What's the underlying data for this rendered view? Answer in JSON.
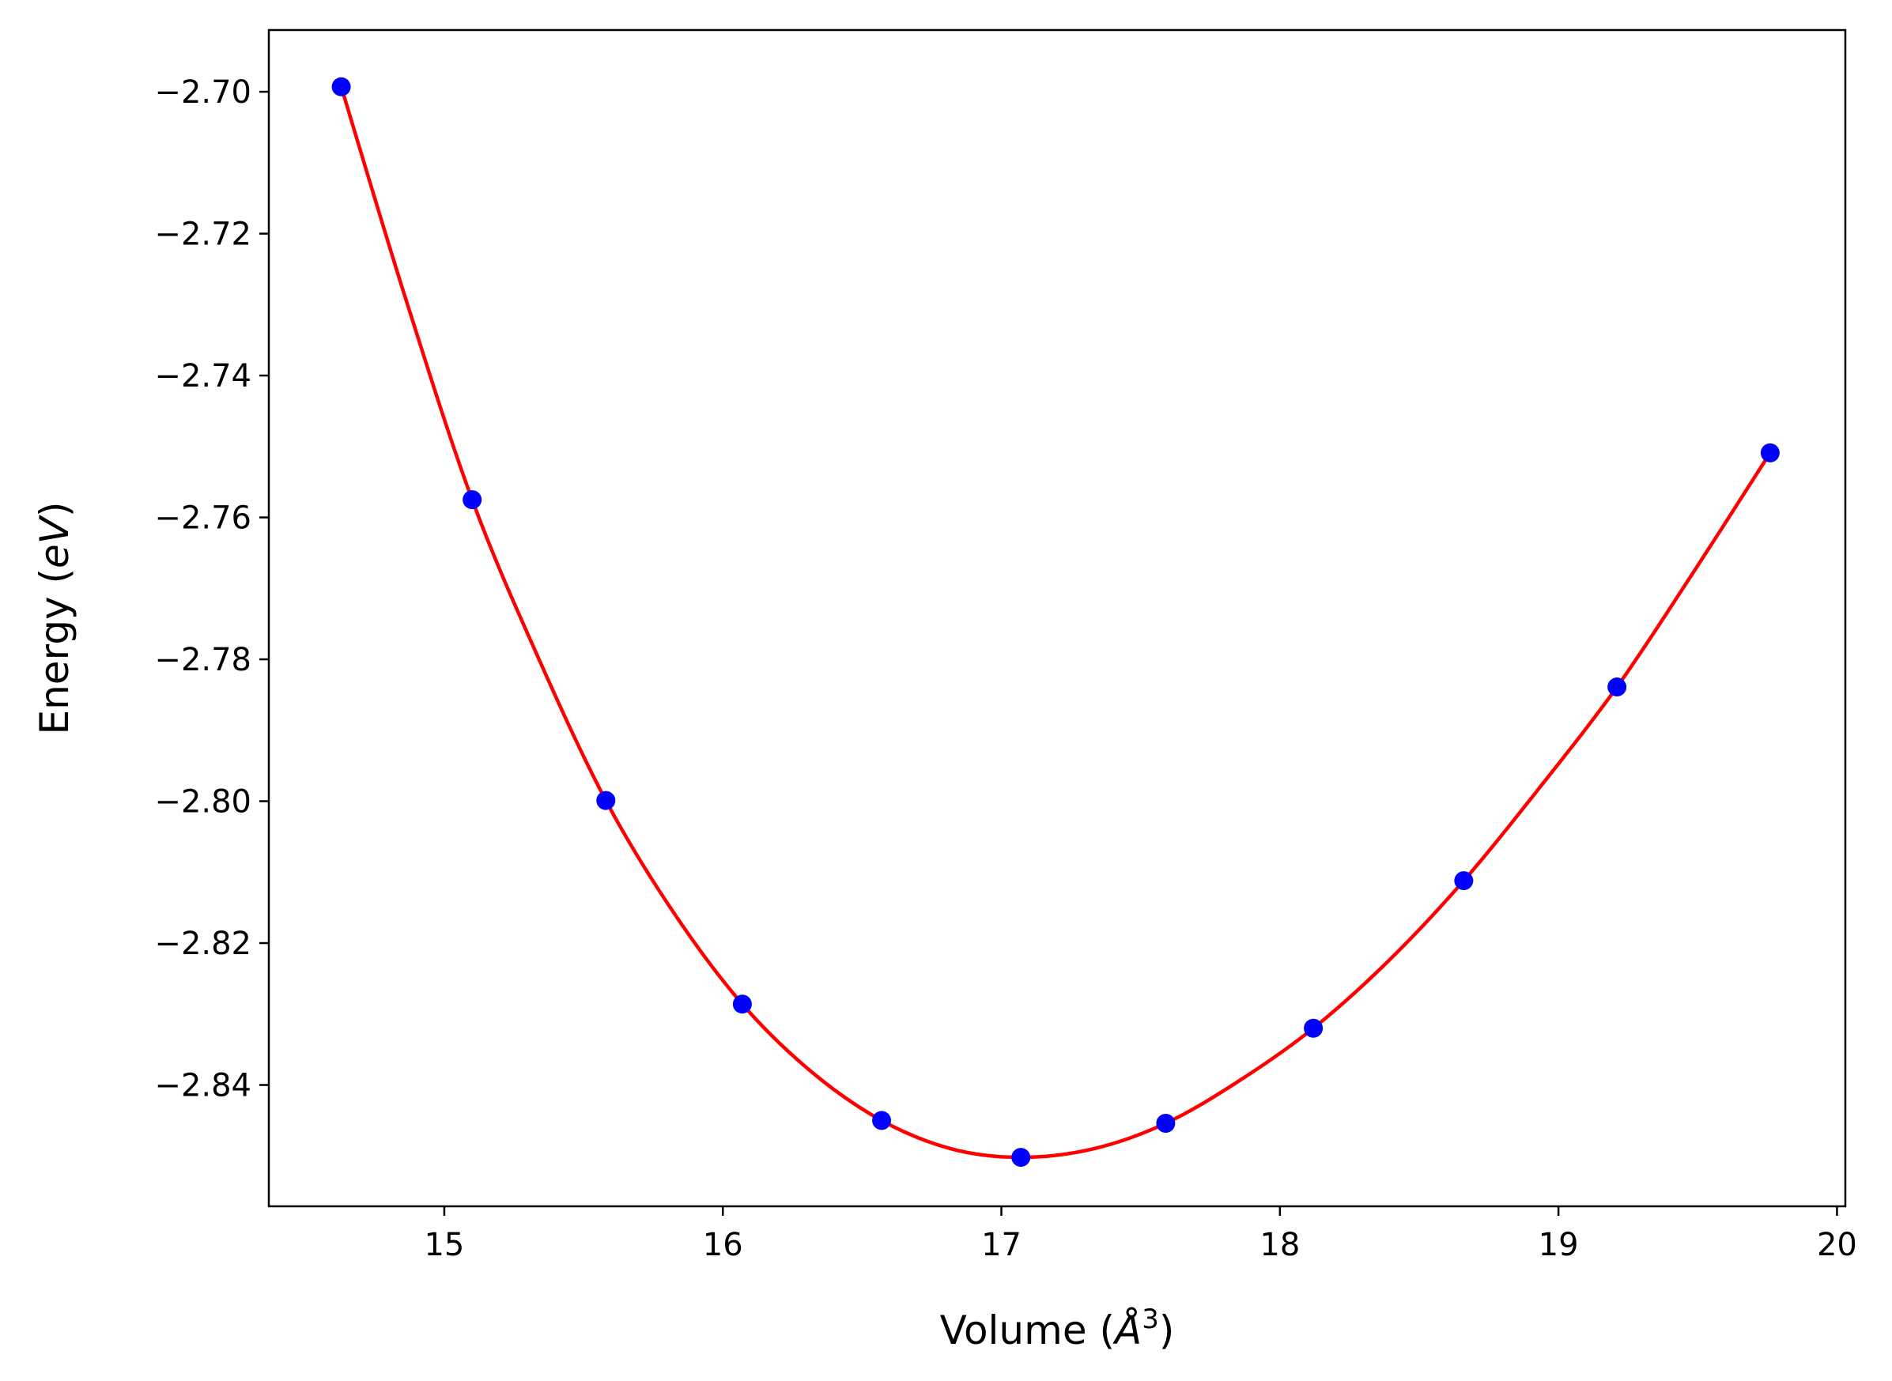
{
  "chart_data": {
    "type": "line",
    "title": "",
    "xlabel": {
      "prefix": "Volume (",
      "symbol": "Å",
      "superscript": "3",
      "suffix": ")"
    },
    "ylabel": {
      "prefix": "Energy (",
      "symbol": "eV",
      "suffix": ")"
    },
    "xlim": [
      14.37,
      20.03
    ],
    "ylim": [
      -2.8571,
      -2.6913
    ],
    "x_ticks": [
      15,
      16,
      17,
      18,
      19,
      20
    ],
    "x_tick_labels": [
      "15",
      "16",
      "17",
      "18",
      "19",
      "20"
    ],
    "y_ticks": [
      -2.7,
      -2.72,
      -2.74,
      -2.76,
      -2.78,
      -2.8,
      -2.82,
      -2.84
    ],
    "y_tick_labels": [
      "−2.70",
      "−2.72",
      "−2.74",
      "−2.76",
      "−2.78",
      "−2.80",
      "−2.82",
      "−2.84"
    ],
    "grid": false,
    "series": [
      {
        "kind": "scatter",
        "color": "#0000ff",
        "points": [
          [
            14.63,
            -2.6993
          ],
          [
            15.1,
            -2.7575
          ],
          [
            15.58,
            -2.7999
          ],
          [
            16.07,
            -2.8286
          ],
          [
            16.57,
            -2.845
          ],
          [
            17.07,
            -2.8502
          ],
          [
            17.59,
            -2.8454
          ],
          [
            18.12,
            -2.832
          ],
          [
            18.66,
            -2.8112
          ],
          [
            19.21,
            -2.7839
          ],
          [
            19.76,
            -2.7509
          ]
        ]
      },
      {
        "kind": "fit-curve",
        "color": "#ff0000",
        "points": [
          [
            14.63,
            -2.6993
          ],
          [
            14.86,
            -2.729
          ],
          [
            15.1,
            -2.7575
          ],
          [
            15.34,
            -2.78
          ],
          [
            15.58,
            -2.7999
          ],
          [
            15.82,
            -2.8155
          ],
          [
            16.07,
            -2.8286
          ],
          [
            16.32,
            -2.8382
          ],
          [
            16.57,
            -2.845
          ],
          [
            16.82,
            -2.849
          ],
          [
            17.07,
            -2.8502
          ],
          [
            17.33,
            -2.849
          ],
          [
            17.59,
            -2.8454
          ],
          [
            17.85,
            -2.8395
          ],
          [
            18.12,
            -2.832
          ],
          [
            18.39,
            -2.8225
          ],
          [
            18.66,
            -2.8112
          ],
          [
            18.93,
            -2.7982
          ],
          [
            19.21,
            -2.7839
          ],
          [
            19.48,
            -2.768
          ],
          [
            19.76,
            -2.7509
          ]
        ]
      }
    ]
  }
}
